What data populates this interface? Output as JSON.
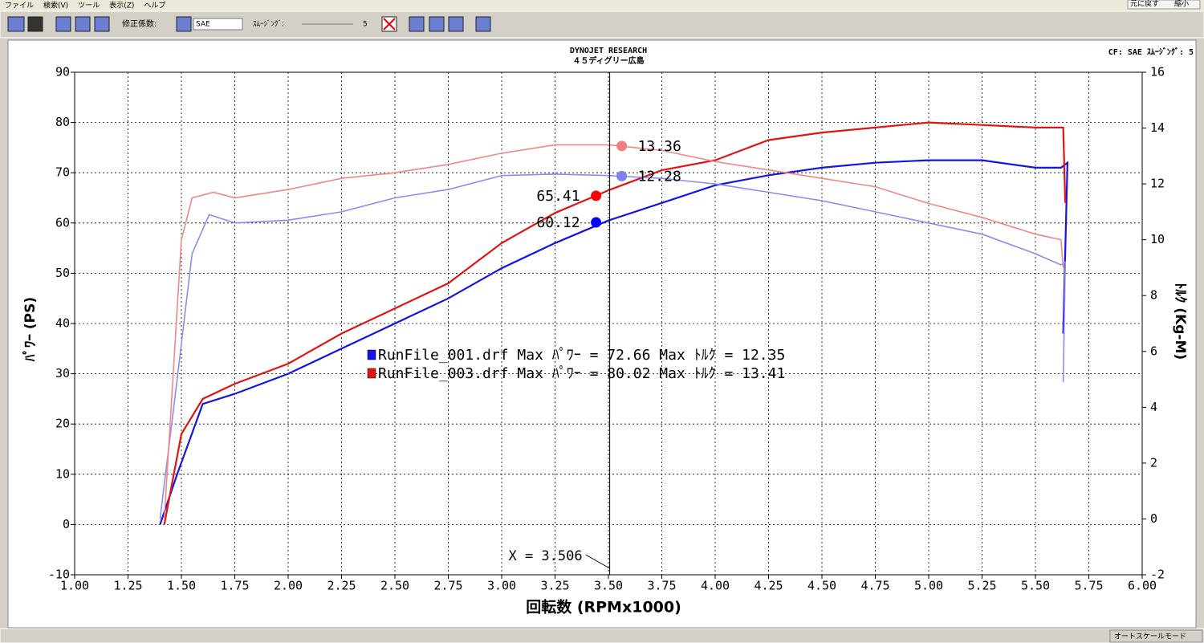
{
  "menu": [
    "ファイル",
    "検索(V)",
    "ツール",
    "表示(Z)",
    "ヘルプ"
  ],
  "toolbar": {
    "cf_label": "修正係数:",
    "cf_value": "SAE",
    "smoothing_label": "ｽﾑｰｼﾞﾝｸﾞ:",
    "smoothing_value": "5"
  },
  "window_buttons": [
    "元に戻す",
    "縮小"
  ],
  "status": "オートスケールモード",
  "chart_data": {
    "type": "line",
    "title": "DYNOJET  RESEARCH",
    "subtitle": "４５ディグリー広島",
    "info": "CF: SAE  ｽﾑｰｼﾞﾝｸﾞ: 5",
    "xlabel": "回転数 (RPMx1000)",
    "ylabel": "ﾊﾟﾜｰ (PS)",
    "y2label": "ﾄﾙｸ (Kg-M)",
    "grid": true,
    "xlim": [
      1.0,
      6.0
    ],
    "xticks": [
      {
        "value": 1.0,
        "label": "1.00"
      },
      {
        "value": 1.25,
        "label": "1.25"
      },
      {
        "value": 1.5,
        "label": "1.50"
      },
      {
        "value": 1.75,
        "label": "1.75"
      },
      {
        "value": 2.0,
        "label": "2.00"
      },
      {
        "value": 2.25,
        "label": "2.25"
      },
      {
        "value": 2.5,
        "label": "2.50"
      },
      {
        "value": 2.75,
        "label": "2.75"
      },
      {
        "value": 3.0,
        "label": "3.00"
      },
      {
        "value": 3.25,
        "label": "3.25"
      },
      {
        "value": 3.5,
        "label": "3.50"
      },
      {
        "value": 3.75,
        "label": "3.75"
      },
      {
        "value": 4.0,
        "label": "4.00"
      },
      {
        "value": 4.25,
        "label": "4.25"
      },
      {
        "value": 4.5,
        "label": "4.50"
      },
      {
        "value": 4.75,
        "label": "4.75"
      },
      {
        "value": 5.0,
        "label": "5.00"
      },
      {
        "value": 5.25,
        "label": "5.25"
      },
      {
        "value": 5.5,
        "label": "5.50"
      },
      {
        "value": 5.75,
        "label": "5.75"
      },
      {
        "value": 6.0,
        "label": "6.00"
      }
    ],
    "ylim": [
      -10,
      90
    ],
    "yticks": [
      -10,
      0,
      10,
      20,
      30,
      40,
      50,
      60,
      70,
      80,
      90
    ],
    "y2lim": [
      -2,
      16
    ],
    "y2ticks": [
      -2,
      0,
      2,
      4,
      6,
      8,
      10,
      12,
      14,
      16
    ],
    "series": [
      {
        "color": "#1414e6",
        "x": [
          1.4,
          1.48,
          1.6,
          1.75,
          2.0,
          2.25,
          2.5,
          2.75,
          3.0,
          3.25,
          3.5,
          3.75,
          4.0,
          4.25,
          4.5,
          4.75,
          5.0,
          5.25,
          5.5,
          5.62,
          5.65,
          5.63
        ],
        "values": [
          0,
          10,
          24,
          26,
          30,
          35,
          40,
          45,
          51,
          56,
          60.5,
          64,
          67.5,
          69.5,
          71,
          72,
          72.5,
          72.5,
          71,
          71,
          72,
          38
        ]
      },
      {
        "color": "#e01414",
        "x": [
          1.42,
          1.5,
          1.6,
          1.75,
          2.0,
          2.25,
          2.5,
          2.75,
          3.0,
          3.25,
          3.5,
          3.75,
          4.0,
          4.25,
          4.5,
          4.75,
          5.0,
          5.25,
          5.5,
          5.63,
          5.64
        ],
        "values": [
          0,
          18,
          25,
          28,
          32,
          38,
          43,
          48,
          56,
          62,
          66.5,
          70.5,
          72.5,
          76.5,
          78,
          79,
          80,
          79.5,
          79,
          79,
          64
        ]
      },
      {
        "color": "#8c8cf0",
        "axis": "y2",
        "x": [
          1.4,
          1.48,
          1.55,
          1.63,
          1.75,
          2.0,
          2.25,
          2.5,
          2.75,
          3.0,
          3.25,
          3.5,
          3.75,
          4.0,
          4.25,
          4.5,
          4.75,
          5.0,
          5.25,
          5.5,
          5.62,
          5.64,
          5.63
        ],
        "values": [
          0,
          5,
          9.5,
          10.9,
          10.6,
          10.7,
          11.0,
          11.5,
          11.8,
          12.3,
          12.35,
          12.3,
          12.2,
          12.0,
          11.7,
          11.4,
          11.0,
          10.6,
          10.2,
          9.5,
          9.1,
          9.2,
          4.9
        ]
      },
      {
        "color": "#f08888",
        "axis": "y2",
        "x": [
          1.42,
          1.5,
          1.55,
          1.65,
          1.75,
          2.0,
          2.25,
          2.5,
          2.75,
          3.0,
          3.25,
          3.5,
          3.75,
          4.0,
          4.25,
          4.5,
          4.75,
          5.0,
          5.25,
          5.5,
          5.62,
          5.63
        ],
        "values": [
          0,
          10,
          11.5,
          11.7,
          11.5,
          11.8,
          12.2,
          12.4,
          12.7,
          13.1,
          13.4,
          13.4,
          13.2,
          12.8,
          12.5,
          12.2,
          11.9,
          11.3,
          10.8,
          10.2,
          10.0,
          9.0
        ]
      }
    ],
    "legend": [
      {
        "color": "#1414e6",
        "label": "RunFile_001.drf Max ﾊﾟﾜｰ = 72.66    Max ﾄﾙｸ = 12.35"
      },
      {
        "color": "#e01414",
        "label": "RunFile_003.drf Max ﾊﾟﾜｰ = 80.02    Max ﾄﾙｸ = 13.41"
      }
    ],
    "cursor": {
      "x": {
        "value": 3.506,
        "label": "X = 3.506"
      },
      "points": [
        {
          "value": 65.41,
          "axis": "y",
          "color": "#ff0000"
        },
        {
          "value": 60.12,
          "axis": "y",
          "color": "#0000ff"
        },
        {
          "value": 13.36,
          "axis": "y2",
          "color": "#f08080"
        },
        {
          "value": 12.28,
          "axis": "y2",
          "color": "#8080f0"
        }
      ]
    }
  }
}
